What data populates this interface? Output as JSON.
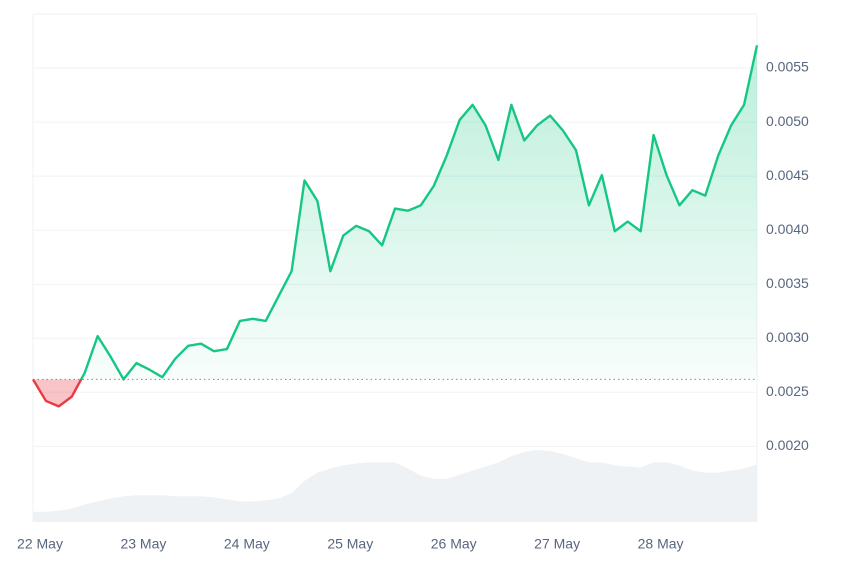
{
  "chart_data": {
    "type": "line",
    "categories": [
      "22 May",
      null,
      null,
      null,
      null,
      null,
      null,
      null,
      "23 May",
      null,
      null,
      null,
      null,
      null,
      null,
      null,
      "24 May",
      null,
      null,
      null,
      null,
      null,
      null,
      null,
      "25 May",
      null,
      null,
      null,
      null,
      null,
      null,
      null,
      "26 May",
      null,
      null,
      null,
      null,
      null,
      null,
      null,
      "27 May",
      null,
      null,
      null,
      null,
      null,
      null,
      null,
      "28 May",
      null,
      null,
      null,
      null,
      null,
      null,
      null,
      null
    ],
    "values": [
      0.00262,
      0.00242,
      0.00237,
      0.00246,
      0.00268,
      0.00302,
      0.00283,
      0.00262,
      0.00277,
      0.00271,
      0.00264,
      0.00281,
      0.00293,
      0.00295,
      0.00288,
      0.0029,
      0.00316,
      0.00318,
      0.00316,
      0.00339,
      0.00362,
      0.00446,
      0.00427,
      0.00362,
      0.00395,
      0.00404,
      0.00399,
      0.00386,
      0.0042,
      0.00418,
      0.00423,
      0.00441,
      0.00469,
      0.00502,
      0.00516,
      0.00497,
      0.00465,
      0.00516,
      0.00483,
      0.00497,
      0.00506,
      0.00492,
      0.00474,
      0.00423,
      0.00451,
      0.00399,
      0.00408,
      0.00399,
      0.00488,
      0.00451,
      0.00423,
      0.00437,
      0.00432,
      0.00469,
      0.00497,
      0.00516,
      0.00571
    ],
    "volume": [
      10,
      10,
      11,
      13,
      17,
      20,
      23,
      25,
      26,
      26,
      26,
      25,
      25,
      25,
      24,
      22,
      20,
      20,
      21,
      23,
      28,
      40,
      48,
      52,
      55,
      57,
      58,
      58,
      58,
      52,
      45,
      42,
      42,
      46,
      50,
      54,
      58,
      64,
      68,
      70,
      69,
      66,
      62,
      58,
      58,
      55,
      54,
      53,
      58,
      58,
      55,
      50,
      48,
      48,
      50,
      52,
      56
    ],
    "baseline": 0.00262,
    "color": "#16c784",
    "negative_color": "#ea3943",
    "volume_color": "#eff2f5",
    "ylim": [
      0.0013,
      0.006
    ],
    "yticks": [
      {
        "value": 0.002,
        "label": "0.0020"
      },
      {
        "value": 0.0025,
        "label": "0.0025"
      },
      {
        "value": 0.003,
        "label": "0.0030"
      },
      {
        "value": 0.0035,
        "label": "0.0035"
      },
      {
        "value": 0.004,
        "label": "0.0040"
      },
      {
        "value": 0.0045,
        "label": "0.0045"
      },
      {
        "value": 0.005,
        "label": "0.0050"
      },
      {
        "value": 0.0055,
        "label": "0.0055"
      }
    ],
    "grid": true
  }
}
